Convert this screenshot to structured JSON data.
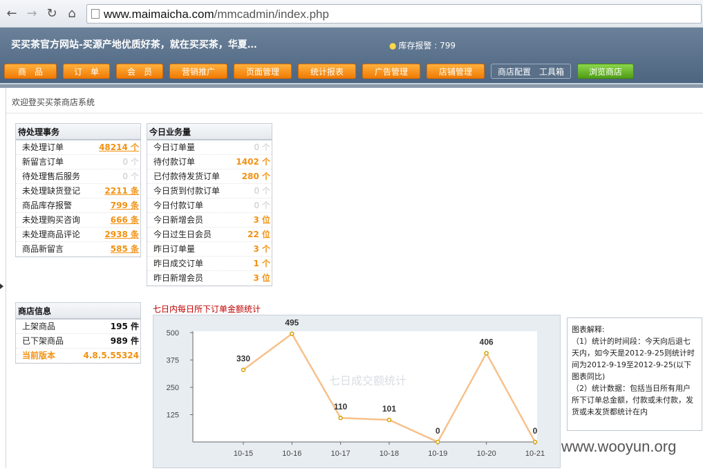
{
  "browser": {
    "url_host": "www.maimaicha.com",
    "url_path": "/mmcadmin/index.php"
  },
  "header": {
    "site_title": "买买茶官方网站-买源产地优质好茶，就在买买茶，华夏…",
    "stock_alert": "库存报警 : 799"
  },
  "menu": [
    {
      "label": "商　品",
      "style": "orange"
    },
    {
      "label": "订　单",
      "style": "orange"
    },
    {
      "label": "会　员",
      "style": "orange"
    },
    {
      "label": "营销推广",
      "style": "orange"
    },
    {
      "label": "页面管理",
      "style": "orange"
    },
    {
      "label": "统计报表",
      "style": "orange"
    },
    {
      "label": "广告管理",
      "style": "orange"
    },
    {
      "label": "店铺管理",
      "style": "orange"
    },
    {
      "label": "商店配置　工具箱",
      "style": "plain"
    },
    {
      "label": "浏览商店",
      "style": "green"
    }
  ],
  "welcome": "欢迎登买买茶商店系统",
  "pending": {
    "title": "待处理事务",
    "rows": [
      {
        "label": "未处理订单",
        "value": "48214 个",
        "style": "orange"
      },
      {
        "label": "新留言订单",
        "value": "0 个",
        "style": "gray"
      },
      {
        "label": "待处理售后服务",
        "value": "0 个",
        "style": "gray"
      },
      {
        "label": "未处理缺货登记",
        "value": "2211 条",
        "style": "orange"
      },
      {
        "label": "商品库存报警",
        "value": "799 条",
        "style": "orange"
      },
      {
        "label": "未处理购买咨询",
        "value": "666 条",
        "style": "orange"
      },
      {
        "label": "未处理商品评论",
        "value": "2938 条",
        "style": "orange"
      },
      {
        "label": "商品新留言",
        "value": "585 条",
        "style": "orange"
      }
    ]
  },
  "today": {
    "title": "今日业务量",
    "rows": [
      {
        "label": "今日订单量",
        "value": "0 个",
        "style": "gray"
      },
      {
        "label": "待付款订单",
        "value": "1402 个",
        "style": "orange-plain"
      },
      {
        "label": "已付款待发货订单",
        "value": "280 个",
        "style": "orange-plain"
      },
      {
        "label": "今日货到付款订单",
        "value": "0 个",
        "style": "gray"
      },
      {
        "label": "今日付款订单",
        "value": "0 个",
        "style": "gray"
      },
      {
        "label": "今日新增会员",
        "value": "3 位",
        "style": "orange-plain"
      },
      {
        "label": "今日过生日会员",
        "value": "22 位",
        "style": "orange-plain"
      },
      {
        "label": "昨日订单量",
        "value": "3 个",
        "style": "orange-plain"
      },
      {
        "label": "昨日成交订单",
        "value": "1 个",
        "style": "orange-plain"
      },
      {
        "label": "昨日新增会员",
        "value": "3 位",
        "style": "orange-plain"
      }
    ]
  },
  "store_info": {
    "title": "商店信息",
    "rows": [
      {
        "label": "上架商品",
        "value": "195 件",
        "style": "black"
      },
      {
        "label": "已下架商品",
        "value": "989 件",
        "style": "black"
      },
      {
        "label": "当前版本",
        "value": "4.8.5.55324",
        "style": "version"
      }
    ]
  },
  "chart_data": {
    "type": "line",
    "title": "七日内每日所下订单金额统计",
    "watermark_text": "七日成交额统计",
    "categories": [
      "10-15",
      "10-16",
      "10-17",
      "10-18",
      "10-19",
      "10-20",
      "10-21"
    ],
    "series": [
      {
        "values": [
          330,
          495,
          110,
          101,
          0,
          406,
          0
        ]
      }
    ],
    "y_ticks": [
      "125",
      "250",
      "375",
      "500"
    ],
    "ylim": [
      0,
      500
    ],
    "grid": false,
    "line_color": "#f7c08a",
    "point_color": "#d4a100"
  },
  "explain": {
    "title": "图表解释:",
    "p1": "（1）统计的时间段：今天向后退七天内，如今天是2012-9-25则统计时间为2012-9-19至2012-9-25(以下图表同比)",
    "p2": "（2）统计数据：包括当日所有用户所下订单总金额，付款或未付款，发货或未发货都统计在内"
  },
  "watermark": "www.wooyun.org"
}
